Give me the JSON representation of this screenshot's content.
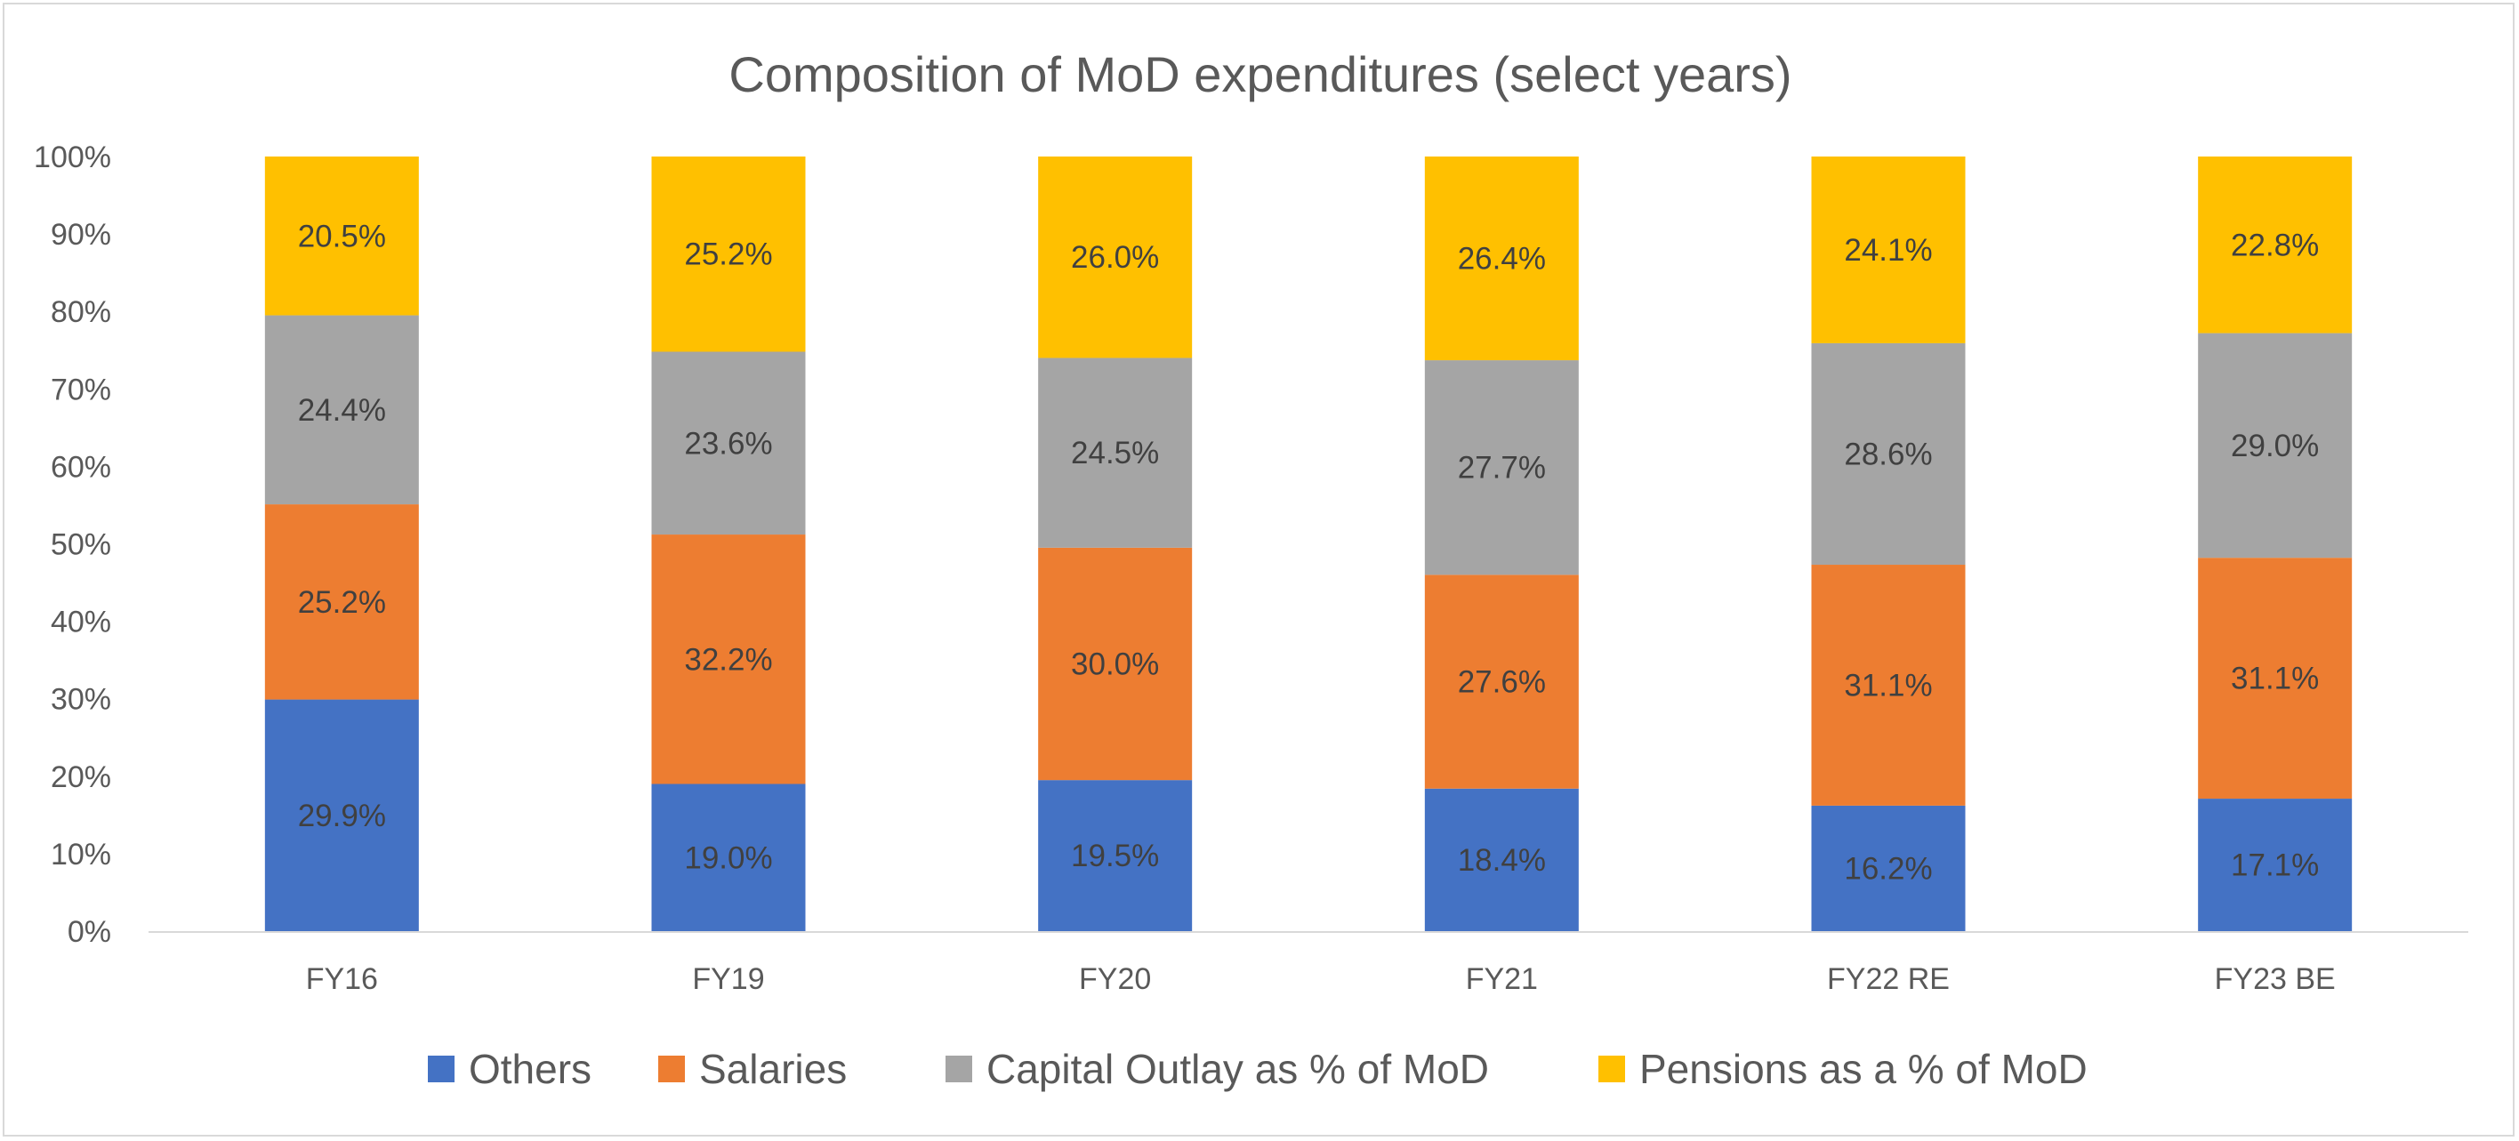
{
  "chart_data": {
    "type": "bar",
    "stacked": true,
    "percent_stacked": true,
    "title": "Composition of MoD expenditures (select years)",
    "categories": [
      "FY16",
      "FY19",
      "FY20",
      "FY21",
      "FY22 RE",
      "FY23 BE"
    ],
    "series": [
      {
        "name": "Others",
        "color": "#4472c4",
        "values": [
          29.9,
          19.0,
          19.5,
          18.4,
          16.2,
          17.1
        ]
      },
      {
        "name": "Salaries",
        "color": "#ed7d31",
        "values": [
          25.2,
          32.2,
          30.0,
          27.6,
          31.1,
          31.1
        ]
      },
      {
        "name": "Capital Outlay as % of MoD",
        "color": "#a5a5a5",
        "values": [
          24.4,
          23.6,
          24.5,
          27.7,
          28.6,
          29.0
        ]
      },
      {
        "name": "Pensions as a % of MoD",
        "color": "#ffc000",
        "values": [
          20.5,
          25.2,
          26.0,
          26.4,
          24.1,
          22.8
        ]
      }
    ],
    "value_labels": [
      [
        "29.9%",
        "19.0%",
        "19.5%",
        "18.4%",
        "16.2%",
        "17.1%"
      ],
      [
        "25.2%",
        "32.2%",
        "30.0%",
        "27.6%",
        "31.1%",
        "31.1%"
      ],
      [
        "24.4%",
        "23.6%",
        "24.5%",
        "27.7%",
        "28.6%",
        "29.0%"
      ],
      [
        "20.5%",
        "25.2%",
        "26.0%",
        "26.4%",
        "24.1%",
        "22.8%"
      ]
    ],
    "y_ticks": [
      0,
      10,
      20,
      30,
      40,
      50,
      60,
      70,
      80,
      90,
      100
    ],
    "y_tick_labels": [
      "0%",
      "10%",
      "20%",
      "30%",
      "40%",
      "50%",
      "60%",
      "70%",
      "80%",
      "90%",
      "100%"
    ],
    "ylim": [
      0,
      100
    ],
    "grid": false,
    "legend_position": "bottom"
  }
}
